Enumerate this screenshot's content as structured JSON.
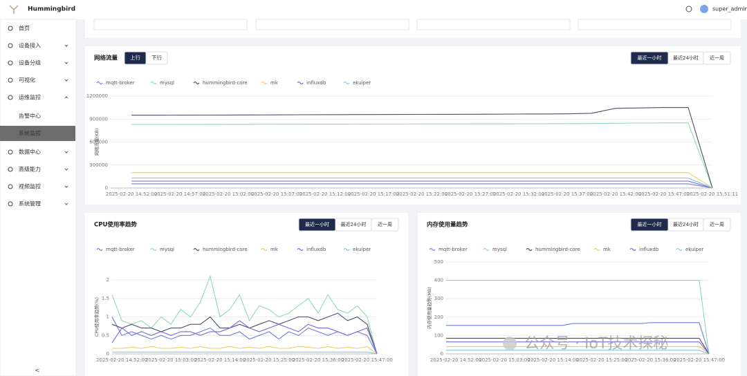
{
  "header": {
    "brand": "Hummingbird",
    "user": "super_admin"
  },
  "sidebar": {
    "items": [
      {
        "label": "首页"
      },
      {
        "label": "设备接入"
      },
      {
        "label": "设备分组"
      },
      {
        "label": "可视化"
      },
      {
        "label": "运维监控",
        "children": [
          "告警中心",
          "系统监控"
        ]
      },
      {
        "label": "数据中心"
      },
      {
        "label": "高级能力"
      },
      {
        "label": "视频监控"
      },
      {
        "label": "系统管理"
      }
    ]
  },
  "watermark": "公众号 · IoT技术探秘",
  "chart_data": [
    {
      "type": "line",
      "title": "网络流量",
      "tabs": [
        "上行",
        "下行"
      ],
      "range_options": [
        "最近一小时",
        "最近24小时",
        "近一周"
      ],
      "y_label": "网络流量(KB)",
      "grid": true,
      "ylim": [
        0,
        1200000
      ],
      "yticks": [
        0,
        300000,
        600000,
        900000,
        1200000
      ],
      "categories": [
        "2025-02-20 14:52:00",
        null,
        "2025-02-20 14:57:00",
        null,
        "2025-02-20 15:02:00",
        null,
        "2025-02-20 15:07:00",
        null,
        "2025-02-20 15:12:00",
        null,
        "2025-02-20 15:17:00",
        null,
        "2025-02-20 15:22:00",
        null,
        "2025-02-20 15:27:00",
        null,
        "2025-02-20 15:32:00",
        null,
        "2025-02-20 15:37:00",
        null,
        "2025-02-20 15:42:00",
        null,
        "2025-02-20 15:47:00",
        null,
        "2025-02-20 15:51:11"
      ],
      "series": [
        {
          "name": "mqtt-broker",
          "color": "#6b7fe0",
          "values": [
            55000,
            55000,
            55000,
            55000,
            55000,
            55000,
            55000,
            55000,
            55000,
            55000,
            55000,
            55000,
            55000,
            55000,
            55000,
            55000,
            55000,
            55000,
            55000,
            55000,
            55000,
            55000,
            55000,
            55000,
            0
          ]
        },
        {
          "name": "mysql",
          "color": "#8fd9b6",
          "values": [
            830000,
            830000,
            831000,
            831000,
            832000,
            832000,
            833000,
            833000,
            834000,
            834000,
            835000,
            835000,
            836000,
            836000,
            837000,
            837000,
            838000,
            838000,
            840000,
            842000,
            845000,
            848000,
            850000,
            850000,
            0
          ]
        },
        {
          "name": "hummingbird-core",
          "color": "#4a4d6a",
          "values": [
            950000,
            950000,
            951000,
            952000,
            953000,
            954000,
            955000,
            956000,
            957000,
            958000,
            959000,
            960000,
            961000,
            962000,
            963000,
            964000,
            965000,
            966000,
            968000,
            975000,
            1040000,
            1045000,
            1050000,
            1050000,
            0
          ]
        },
        {
          "name": "mk",
          "color": "#f5c85a",
          "values": [
            200000,
            200000,
            200000,
            200000,
            200000,
            200000,
            200000,
            200000,
            200000,
            200000,
            200000,
            200000,
            200000,
            200000,
            200000,
            200000,
            200000,
            200000,
            200000,
            200000,
            200000,
            200000,
            200000,
            200000,
            0
          ]
        },
        {
          "name": "influxdb",
          "color": "#7a63e0",
          "values": [
            90000,
            90000,
            90000,
            90000,
            90000,
            90000,
            90000,
            90000,
            90000,
            90000,
            90000,
            90000,
            90000,
            90000,
            90000,
            90000,
            90000,
            90000,
            90000,
            90000,
            90000,
            90000,
            90000,
            90000,
            0
          ]
        },
        {
          "name": "ekuiper",
          "color": "#82c7e8",
          "values": [
            130000,
            130000,
            130000,
            130000,
            130000,
            130000,
            130000,
            130000,
            130000,
            130000,
            130000,
            130000,
            130000,
            130000,
            130000,
            130000,
            130000,
            130000,
            130000,
            130000,
            130000,
            130000,
            130000,
            130000,
            0
          ]
        }
      ]
    },
    {
      "type": "line",
      "title": "CPU使用率趋势",
      "range_options": [
        "最近一小时",
        "最近24小时",
        "近一周"
      ],
      "y_label": "CPU使用率趋势(%)",
      "grid": true,
      "ylim": [
        0,
        2
      ],
      "yticks": [
        0,
        0.5,
        1,
        1.5,
        2
      ],
      "categories": [
        null,
        "2025-02-20 14:52:00",
        null,
        null,
        null,
        null,
        "2025-02-20 15:03:00",
        null,
        null,
        null,
        null,
        "2025-02-20 15:14:00",
        null,
        null,
        null,
        null,
        "2025-02-20 15:25:00",
        null,
        null,
        null,
        null,
        "2025-02-20 15:36:00",
        null,
        null,
        null,
        null,
        "2025-02-20 15:47:00",
        null
      ],
      "series": [
        {
          "name": "mqtt-broker",
          "color": "#6b7fe0",
          "values": [
            1.0,
            0.5,
            0.6,
            0.5,
            0.4,
            0.5,
            0.4,
            0.5,
            0.5,
            0.6,
            0.7,
            0.5,
            0.5,
            0.6,
            0.4,
            0.5,
            0.6,
            0.4,
            0.6,
            0.5,
            0.7,
            0.6,
            0.5,
            0.6,
            0.5,
            0.6,
            0.5,
            0
          ]
        },
        {
          "name": "mysql",
          "color": "#8fd9b6",
          "values": [
            1.6,
            0.9,
            0.8,
            0.9,
            0.7,
            1.0,
            0.8,
            1.2,
            1.0,
            1.4,
            2.1,
            1.0,
            1.2,
            1.6,
            0.9,
            1.3,
            1.2,
            1.0,
            1.1,
            1.3,
            1.5,
            1.1,
            1.6,
            1.2,
            1.1,
            1.3,
            1.0,
            0
          ]
        },
        {
          "name": "hummingbird-core",
          "color": "#4a4d6a",
          "values": [
            0.8,
            0.7,
            0.8,
            0.7,
            0.7,
            0.6,
            0.7,
            0.7,
            0.8,
            0.8,
            1.0,
            0.7,
            0.7,
            0.8,
            0.7,
            0.8,
            0.9,
            0.8,
            0.9,
            1.0,
            1.0,
            0.9,
            1.0,
            1.1,
            0.9,
            1.0,
            0.8,
            0
          ]
        },
        {
          "name": "mk",
          "color": "#f5c85a",
          "values": [
            0.15,
            0.15,
            0.18,
            0.15,
            0.2,
            0.15,
            0.15,
            0.18,
            0.15,
            0.2,
            0.15,
            0.15,
            0.2,
            0.15,
            0.18,
            0.15,
            0.2,
            0.15,
            0.15,
            0.2,
            0.18,
            0.15,
            0.2,
            0.15,
            0.18,
            0.15,
            0.2,
            0
          ]
        },
        {
          "name": "influxdb",
          "color": "#7a63e0",
          "values": [
            0.3,
            0.7,
            0.5,
            0.6,
            0.5,
            0.6,
            0.5,
            0.6,
            0.6,
            0.5,
            0.6,
            0.6,
            0.7,
            0.9,
            0.7,
            0.6,
            0.7,
            0.8,
            0.7,
            0.6,
            0.8,
            0.7,
            0.7,
            0.6,
            0.5,
            0.6,
            0.7,
            0
          ]
        },
        {
          "name": "ekuiper",
          "color": "#82c7e8",
          "values": [
            0.05,
            0.05,
            0.05,
            0.05,
            0.05,
            0.05,
            0.05,
            0.05,
            0.05,
            0.05,
            0.05,
            0.05,
            0.05,
            0.05,
            0.05,
            0.05,
            0.05,
            0.05,
            0.05,
            0.05,
            0.05,
            0.05,
            0.05,
            0.05,
            0.05,
            0.05,
            0.05,
            0
          ]
        }
      ]
    },
    {
      "type": "line",
      "title": "内存使用量趋势",
      "range_options": [
        "最近一小时",
        "最近24小时",
        "近一周"
      ],
      "y_label": "内存使用量趋势(MB)",
      "grid": true,
      "ylim": [
        0,
        500
      ],
      "yticks": [
        0,
        100,
        200,
        300,
        400,
        500
      ],
      "categories": [
        null,
        "2025-02-20 14:52:00",
        null,
        null,
        null,
        null,
        "2025-02-20 15:03:00",
        null,
        null,
        null,
        null,
        "2025-02-20 15:14:00",
        null,
        null,
        null,
        null,
        "2025-02-20 15:25:00",
        null,
        null,
        null,
        null,
        "2025-02-20 15:36:00",
        null,
        null,
        null,
        null,
        "2025-02-20 15:47:00",
        null
      ],
      "series": [
        {
          "name": "mqtt-broker",
          "color": "#6b7fe0",
          "values": [
            155,
            155,
            155,
            155,
            155,
            155,
            155,
            155,
            155,
            155,
            155,
            155,
            155,
            165,
            165,
            165,
            165,
            165,
            165,
            165,
            165,
            170,
            170,
            170,
            170,
            170,
            170,
            0
          ]
        },
        {
          "name": "mysql",
          "color": "#8fd9b6",
          "values": [
            400,
            400,
            400,
            400,
            400,
            400,
            400,
            400,
            400,
            400,
            400,
            400,
            400,
            400,
            400,
            400,
            400,
            400,
            400,
            400,
            400,
            400,
            400,
            400,
            400,
            400,
            400,
            0
          ]
        },
        {
          "name": "hummingbird-core",
          "color": "#4a4d6a",
          "values": [
            85,
            85,
            85,
            85,
            85,
            85,
            85,
            85,
            85,
            85,
            85,
            85,
            85,
            85,
            85,
            85,
            85,
            85,
            85,
            85,
            85,
            85,
            85,
            85,
            85,
            85,
            85,
            0
          ]
        },
        {
          "name": "mk",
          "color": "#f5c85a",
          "values": [
            40,
            40,
            40,
            40,
            40,
            40,
            40,
            40,
            40,
            40,
            40,
            40,
            40,
            40,
            40,
            40,
            40,
            40,
            40,
            40,
            40,
            40,
            40,
            40,
            40,
            40,
            40,
            0
          ]
        },
        {
          "name": "influxdb",
          "color": "#7a63e0",
          "values": [
            65,
            65,
            65,
            65,
            65,
            65,
            65,
            65,
            65,
            65,
            65,
            65,
            65,
            65,
            65,
            65,
            65,
            65,
            65,
            65,
            65,
            65,
            65,
            65,
            65,
            65,
            65,
            0
          ]
        },
        {
          "name": "ekuiper",
          "color": "#82c7e8",
          "values": [
            20,
            20,
            20,
            20,
            20,
            20,
            20,
            20,
            20,
            20,
            20,
            20,
            20,
            20,
            20,
            20,
            20,
            20,
            20,
            20,
            20,
            20,
            20,
            20,
            20,
            20,
            20,
            0
          ]
        }
      ]
    }
  ]
}
